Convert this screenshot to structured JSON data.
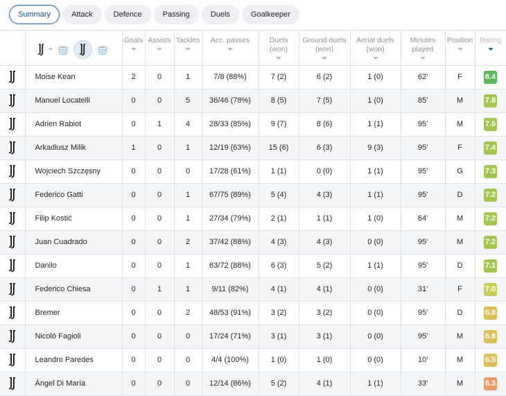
{
  "tabs": [
    "Summary",
    "Attack",
    "Defence",
    "Passing",
    "Duels",
    "Goalkeeper"
  ],
  "active_tab": 0,
  "header": {
    "plus": "+",
    "columns": [
      {
        "label": "Goals",
        "sub": ""
      },
      {
        "label": "Assists",
        "sub": ""
      },
      {
        "label": "Tackles",
        "sub": ""
      },
      {
        "label": "Acc. passes",
        "sub": ""
      },
      {
        "label": "Duels",
        "sub": "(won)"
      },
      {
        "label": "Ground duels",
        "sub": "(won)"
      },
      {
        "label": "Aerial duels",
        "sub": "(won)"
      },
      {
        "label": "Minutes",
        "sub": "played"
      },
      {
        "label": "Position",
        "sub": ""
      },
      {
        "label": "Rating",
        "sub": ""
      }
    ]
  },
  "colors": {
    "accent": "#2b6cb0",
    "rating_high": "#5cb85c",
    "rating_good": "#a3c653",
    "rating_mid": "#c9cd5a",
    "rating_low": "#dcbf5a",
    "rating_poor": "#e99a6a"
  },
  "players": [
    {
      "name": "Moise Kean",
      "goals": "2",
      "assists": "0",
      "tackles": "1",
      "passes": "7/8 (88%)",
      "duels": "7 (2)",
      "ground": "6 (2)",
      "aerial": "1 (0)",
      "minutes": "62'",
      "pos": "F",
      "rating": "8.4",
      "rating_color": "#5cb85c"
    },
    {
      "name": "Manuel Locatelli",
      "goals": "0",
      "assists": "0",
      "tackles": "5",
      "passes": "36/46 (78%)",
      "duels": "8 (5)",
      "ground": "7 (5)",
      "aerial": "1 (0)",
      "minutes": "85'",
      "pos": "M",
      "rating": "7.8",
      "rating_color": "#a3c653"
    },
    {
      "name": "Adrien Rabiot",
      "goals": "0",
      "assists": "1",
      "tackles": "4",
      "passes": "28/33 (85%)",
      "duels": "9 (7)",
      "ground": "8 (6)",
      "aerial": "1 (1)",
      "minutes": "95'",
      "pos": "M",
      "rating": "7.6",
      "rating_color": "#a3c653"
    },
    {
      "name": "Arkadiusz Milik",
      "goals": "1",
      "assists": "0",
      "tackles": "1",
      "passes": "12/19 (63%)",
      "duels": "15 (6)",
      "ground": "6 (3)",
      "aerial": "9 (3)",
      "minutes": "95'",
      "pos": "F",
      "rating": "7.4",
      "rating_color": "#a3c653"
    },
    {
      "name": "Wojciech Szczęsny",
      "goals": "0",
      "assists": "0",
      "tackles": "0",
      "passes": "17/28 (61%)",
      "duels": "1 (1)",
      "ground": "0 (0)",
      "aerial": "1 (1)",
      "minutes": "95'",
      "pos": "G",
      "rating": "7.3",
      "rating_color": "#a3c653"
    },
    {
      "name": "Federico Gatti",
      "goals": "0",
      "assists": "0",
      "tackles": "1",
      "passes": "67/75 (89%)",
      "duels": "5 (4)",
      "ground": "4 (3)",
      "aerial": "1 (1)",
      "minutes": "95'",
      "pos": "D",
      "rating": "7.2",
      "rating_color": "#a3c653"
    },
    {
      "name": "Filip Kostić",
      "goals": "0",
      "assists": "0",
      "tackles": "1",
      "passes": "27/34 (79%)",
      "duels": "2 (1)",
      "ground": "1 (1)",
      "aerial": "1 (0)",
      "minutes": "64'",
      "pos": "M",
      "rating": "7.2",
      "rating_color": "#a3c653"
    },
    {
      "name": "Juan Cuadrado",
      "goals": "0",
      "assists": "0",
      "tackles": "2",
      "passes": "37/42 (88%)",
      "duels": "4 (3)",
      "ground": "4 (3)",
      "aerial": "0 (0)",
      "minutes": "95'",
      "pos": "M",
      "rating": "7.2",
      "rating_color": "#a3c653"
    },
    {
      "name": "Danilo",
      "goals": "0",
      "assists": "0",
      "tackles": "1",
      "passes": "63/72 (88%)",
      "duels": "6 (3)",
      "ground": "5 (2)",
      "aerial": "1 (1)",
      "minutes": "95'",
      "pos": "D",
      "rating": "7.1",
      "rating_color": "#a3c653"
    },
    {
      "name": "Federico Chiesa",
      "goals": "0",
      "assists": "1",
      "tackles": "1",
      "passes": "9/11 (82%)",
      "duels": "4 (1)",
      "ground": "4 (1)",
      "aerial": "0 (0)",
      "minutes": "31'",
      "pos": "F",
      "rating": "7.0",
      "rating_color": "#c9cd5a"
    },
    {
      "name": "Bremer",
      "goals": "0",
      "assists": "0",
      "tackles": "2",
      "passes": "48/53 (91%)",
      "duels": "3 (2)",
      "ground": "3 (2)",
      "aerial": "0 (0)",
      "minutes": "95'",
      "pos": "D",
      "rating": "6.8",
      "rating_color": "#dcbf5a"
    },
    {
      "name": "Nicolò Fagioli",
      "goals": "0",
      "assists": "0",
      "tackles": "0",
      "passes": "17/24 (71%)",
      "duels": "3 (1)",
      "ground": "3 (1)",
      "aerial": "0 (0)",
      "minutes": "95'",
      "pos": "M",
      "rating": "6.8",
      "rating_color": "#dcbf5a"
    },
    {
      "name": "Leandro Paredes",
      "goals": "0",
      "assists": "0",
      "tackles": "0",
      "passes": "4/4 (100%)",
      "duels": "1 (0)",
      "ground": "1 (0)",
      "aerial": "0 (0)",
      "minutes": "10'",
      "pos": "M",
      "rating": "6.5",
      "rating_color": "#dcbf5a"
    },
    {
      "name": "Ángel Di María",
      "goals": "0",
      "assists": "0",
      "tackles": "0",
      "passes": "12/14 (86%)",
      "duels": "5 (2)",
      "ground": "4 (1)",
      "aerial": "1 (1)",
      "minutes": "33'",
      "pos": "M",
      "rating": "6.3",
      "rating_color": "#e99a6a"
    }
  ]
}
